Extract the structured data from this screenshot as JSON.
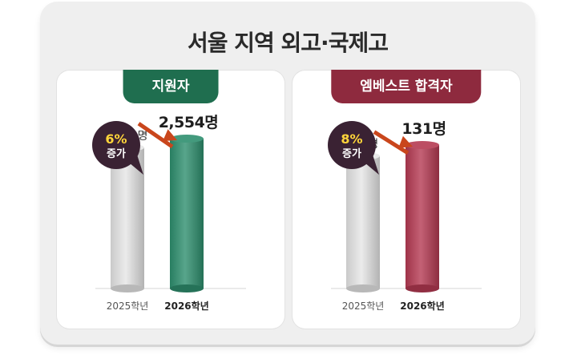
{
  "title": "서울 지역 외고·국제고",
  "colors": {
    "applicants": "#2e8f6e",
    "applicants_tab": "#1f6e4f",
    "passers": "#b53a52",
    "passers_tab": "#8e2a3e",
    "last_year": "#e6e6e6",
    "arrow": "#c9461c",
    "bubble": "#3a2233",
    "bubble_text": "#ffd53a"
  },
  "chart_data": [
    {
      "type": "bar",
      "title": "지원자",
      "categories": [
        "2025학년",
        "2026학년"
      ],
      "values": [
        2402,
        2554
      ],
      "value_labels": [
        "2,402명",
        "2,554명"
      ],
      "increase": {
        "percent": "6%",
        "label": "증가"
      },
      "ylim": [
        0,
        2800
      ]
    },
    {
      "type": "bar",
      "title": "엠베스트 합격자",
      "categories": [
        "2025학년",
        "2026학년"
      ],
      "values": [
        121,
        131
      ],
      "value_labels": [
        "121명",
        "131명"
      ],
      "increase": {
        "percent": "8%",
        "label": "증가"
      },
      "ylim": [
        0,
        150
      ]
    }
  ]
}
